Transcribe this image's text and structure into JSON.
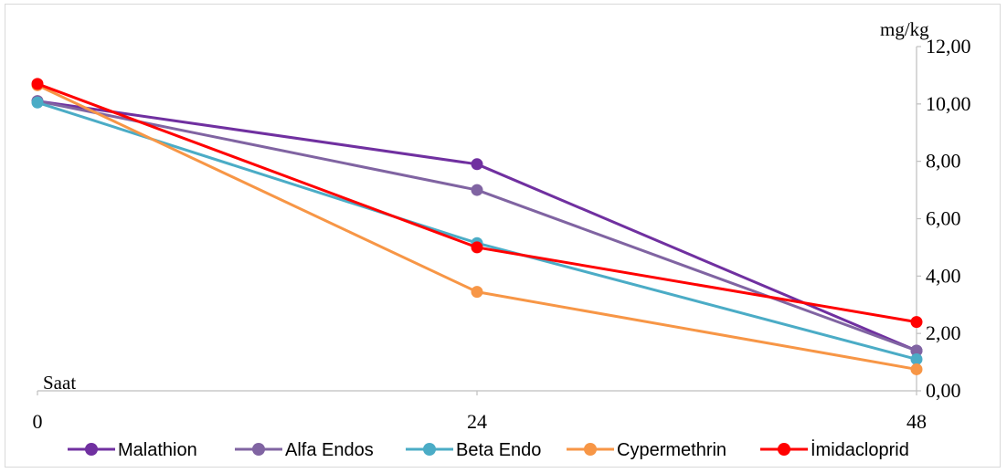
{
  "chart_data": {
    "type": "line",
    "x": [
      "0",
      "24",
      "48"
    ],
    "ylabel": "mg/kg",
    "xlabel": "Saat",
    "ylim": [
      0,
      12
    ],
    "yticks": [
      "0,00",
      "2,00",
      "4,00",
      "6,00",
      "8,00",
      "10,00",
      "12,00"
    ],
    "y_axis_position": "right",
    "grid": false,
    "legend_position": "bottom",
    "series": [
      {
        "name": "Malathion",
        "color": "#7030A0",
        "values": [
          10.1,
          7.9,
          1.4
        ]
      },
      {
        "name": "Alfa Endos",
        "color": "#8064A2",
        "values": [
          10.1,
          7.0,
          1.4
        ]
      },
      {
        "name": "Beta Endo",
        "color": "#4BACC6",
        "values": [
          10.05,
          5.15,
          1.1
        ]
      },
      {
        "name": "Cypermethrin",
        "color": "#F79646",
        "values": [
          10.65,
          3.45,
          0.75
        ]
      },
      {
        "name": "İmidacloprid",
        "color": "#FF0000",
        "values": [
          10.7,
          5.0,
          2.4
        ]
      }
    ]
  }
}
